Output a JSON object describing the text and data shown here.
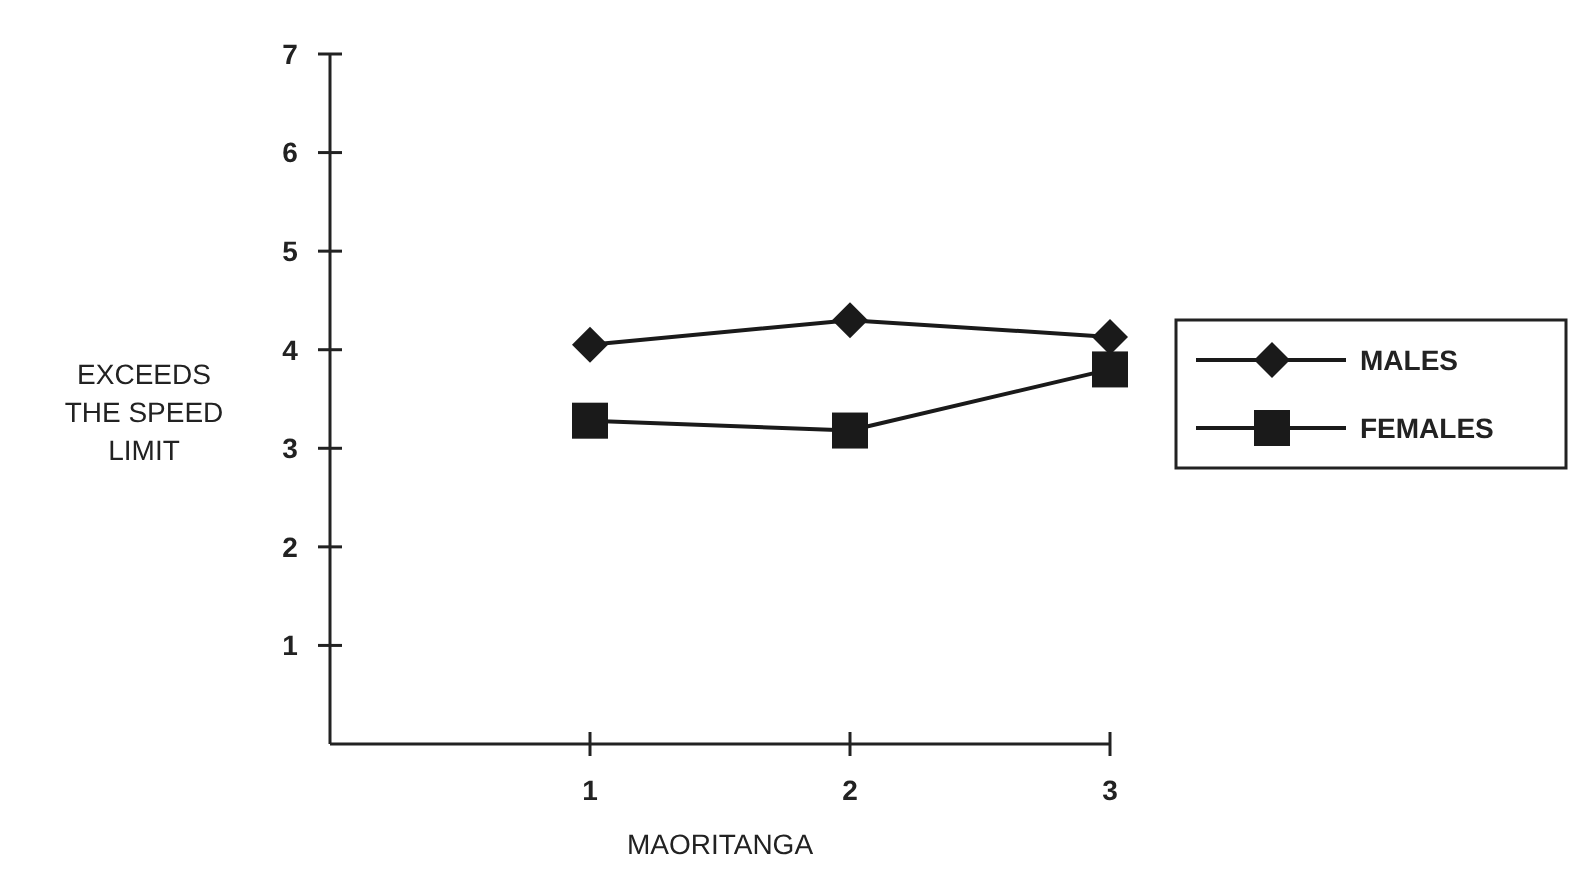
{
  "chart_data": {
    "type": "line",
    "xlabel": "MAORITANGA",
    "ylabel": "EXCEEDS THE SPEED LIMIT",
    "x": [
      1,
      2,
      3
    ],
    "xlim": [
      0,
      3
    ],
    "xticks": [
      1,
      2,
      3
    ],
    "ylim": [
      0,
      7
    ],
    "yticks": [
      1,
      2,
      3,
      4,
      5,
      6,
      7
    ],
    "legend": "right",
    "grid": false,
    "series": [
      {
        "name": "MALES",
        "color": "#1a1a1a",
        "marker": "diamond",
        "values": [
          4.05,
          4.3,
          4.13
        ]
      },
      {
        "name": "FEMALES",
        "color": "#1a1a1a",
        "marker": "square",
        "values": [
          3.28,
          3.18,
          3.8
        ]
      }
    ]
  }
}
